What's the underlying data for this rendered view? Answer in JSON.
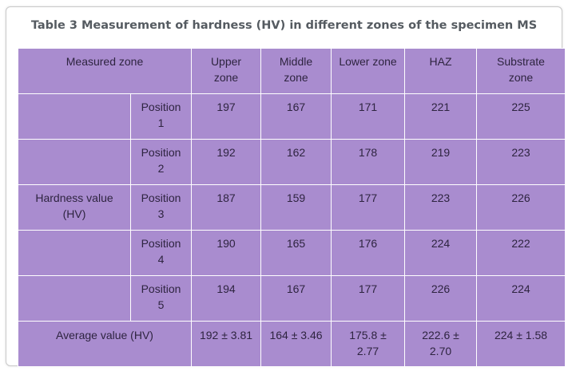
{
  "caption": "Table 3 Measurement of hardness (HV) in different zones of the specimen MS",
  "colors": {
    "cell_background": "#a98ccf",
    "grid_line": "#ffffff",
    "cell_text": "#2e2440",
    "caption_text": "#555b61"
  },
  "header": {
    "measured_zone": "Measured zone",
    "columns": [
      {
        "line1": "Upper",
        "line2": "zone"
      },
      {
        "line1": "Middle",
        "line2": "zone"
      },
      {
        "line1": "Lower zone",
        "line2": ""
      },
      {
        "line1": "HAZ",
        "line2": ""
      },
      {
        "line1": "Substrate",
        "line2": "zone"
      }
    ]
  },
  "group_label": {
    "line1": "Hardness value",
    "line2": "(HV)"
  },
  "rows": [
    {
      "position_line1": "Position",
      "position_line2": "1",
      "values": [
        "197",
        "167",
        "171",
        "221",
        "225"
      ]
    },
    {
      "position_line1": "Position",
      "position_line2": "2",
      "values": [
        "192",
        "162",
        "178",
        "219",
        "223"
      ]
    },
    {
      "position_line1": "Position",
      "position_line2": "3",
      "values": [
        "187",
        "159",
        "177",
        "223",
        "226"
      ]
    },
    {
      "position_line1": "Position",
      "position_line2": "4",
      "values": [
        "190",
        "165",
        "176",
        "224",
        "222"
      ]
    },
    {
      "position_line1": "Position",
      "position_line2": "5",
      "values": [
        "194",
        "167",
        "177",
        "226",
        "224"
      ]
    }
  ],
  "average": {
    "label": "Average value (HV)",
    "values": [
      {
        "line1": "192 ± 3.81",
        "line2": ""
      },
      {
        "line1": "164 ± 3.46",
        "line2": ""
      },
      {
        "line1": "175.8 ±",
        "line2": "2.77"
      },
      {
        "line1": "222.6 ±",
        "line2": "2.70"
      },
      {
        "line1": "224 ± 1.58",
        "line2": ""
      }
    ]
  }
}
